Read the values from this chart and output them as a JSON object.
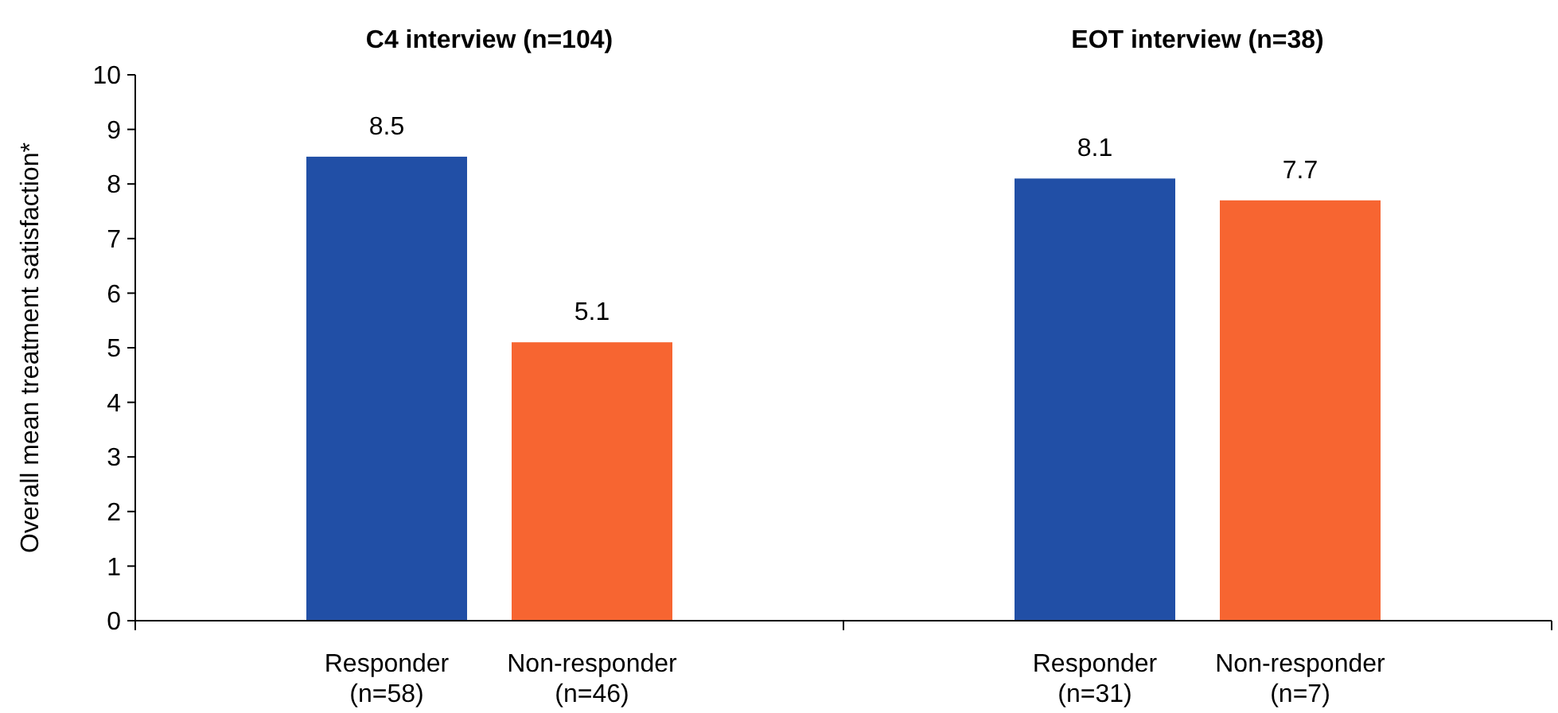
{
  "chart_data": {
    "type": "bar",
    "ylabel": "Overall mean treatment satisfaction*",
    "categories": [
      "Responder\n(n=58)",
      "Non-responder\n(n=46)",
      "Responder\n(n=31)",
      "Non-responder\n(n=7)"
    ],
    "values": [
      8.5,
      5.1,
      8.1,
      7.7
    ],
    "colors": [
      "#214fa6",
      "#f76531",
      "#214fa6",
      "#f76531"
    ],
    "ylim": [
      0,
      10
    ],
    "yticks": [
      0,
      1,
      2,
      3,
      4,
      5,
      6,
      7,
      8,
      9,
      10
    ],
    "data_labels": true,
    "annotations": [
      "C4 interview (n=104)",
      "EOT interview (n=38)"
    ]
  }
}
